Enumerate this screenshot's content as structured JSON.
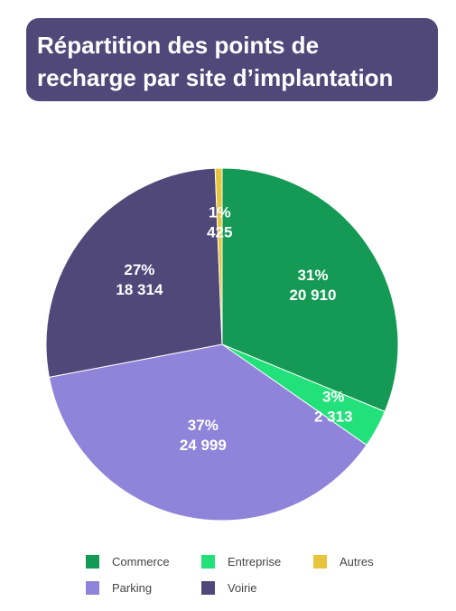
{
  "header": {
    "title_line1": "Répartition des points de",
    "title_line2": "recharge par site d’implantation"
  },
  "chart_data": {
    "type": "pie",
    "title": "Répartition des points de recharge par site d’implantation",
    "slices": [
      {
        "name": "Commerce",
        "value": 20910,
        "percent": 31,
        "percent_label": "31%",
        "value_label": "20 910",
        "color": "#149a55"
      },
      {
        "name": "Entreprise",
        "value": 2313,
        "percent": 3,
        "percent_label": "3%",
        "value_label": "2 313",
        "color": "#22e07a"
      },
      {
        "name": "Parking",
        "value": 24999,
        "percent": 37,
        "percent_label": "37%",
        "value_label": "24 999",
        "color": "#8f84d9"
      },
      {
        "name": "Voirie",
        "value": 18314,
        "percent": 27,
        "percent_label": "27%",
        "value_label": "18 314",
        "color": "#51487a"
      },
      {
        "name": "Autres",
        "value": 425,
        "percent": 1,
        "percent_label": "1%",
        "value_label": "425",
        "color": "#e8c43c"
      }
    ],
    "legend_order": [
      "Commerce",
      "Entreprise",
      "Autres",
      "Parking",
      "Voirie"
    ],
    "legend_position": "bottom"
  }
}
